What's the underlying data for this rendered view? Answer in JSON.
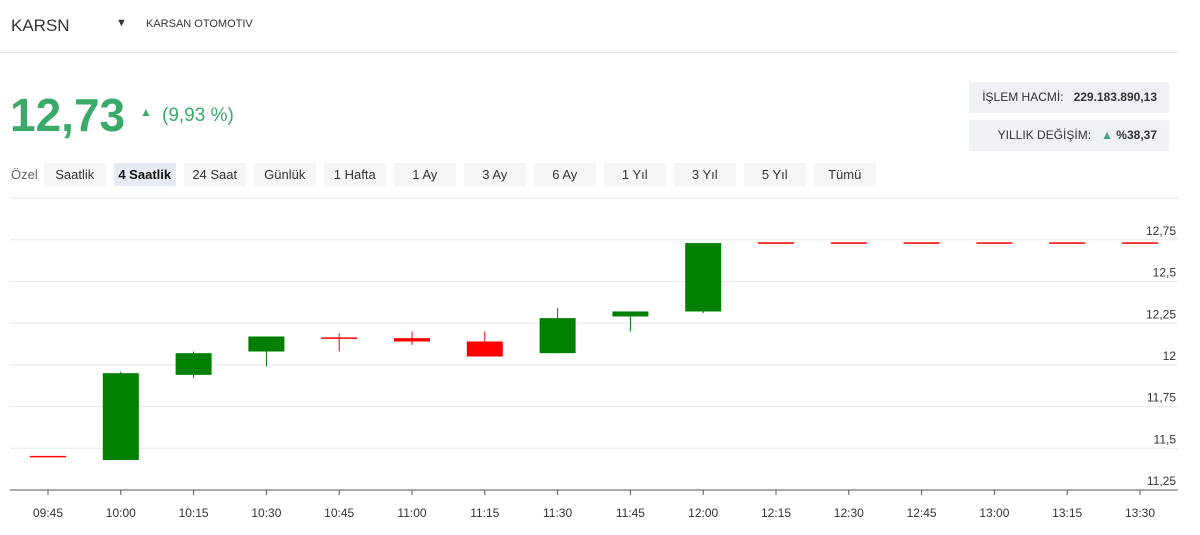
{
  "header": {
    "symbol": "KARSN",
    "name": "KARSAN OTOMOTIV",
    "price": "12,73",
    "change": "(9,93 %)",
    "volume_label": "İŞLEM HACMİ:",
    "volume": "229.183.890,13",
    "yearly_label": "YILLIK DEĞİŞİM:",
    "yearly": "%38,37"
  },
  "tabs": {
    "label": "Özel",
    "items": [
      "Saatlik",
      "4 Saatlik",
      "24 Saat",
      "Günlük",
      "1 Hafta",
      "1 Ay",
      "3 Ay",
      "6 Ay",
      "1 Yıl",
      "3 Yıl",
      "5 Yıl",
      "Tümü"
    ],
    "active": 1
  },
  "chart_data": {
    "type": "candlestick",
    "categories": [
      "09:45",
      "10:00",
      "10:15",
      "10:30",
      "10:45",
      "11:00",
      "11:15",
      "11:30",
      "11:45",
      "12:00",
      "12:15",
      "12:30",
      "12:45",
      "13:00",
      "13:15",
      "13:30"
    ],
    "open": [
      11.45,
      11.43,
      11.94,
      12.08,
      12.16,
      12.16,
      12.14,
      12.07,
      12.29,
      12.32,
      12.73,
      12.73,
      12.73,
      12.73,
      12.73,
      12.73
    ],
    "high": [
      11.45,
      11.96,
      12.08,
      12.17,
      12.19,
      12.2,
      12.2,
      12.34,
      12.32,
      12.73,
      12.73,
      12.73,
      12.73,
      12.73,
      12.73,
      12.73
    ],
    "low": [
      11.45,
      11.43,
      11.92,
      11.99,
      12.08,
      12.12,
      12.05,
      12.07,
      12.2,
      12.31,
      12.73,
      12.73,
      12.73,
      12.73,
      12.73,
      12.73
    ],
    "close": [
      11.45,
      11.95,
      12.07,
      12.17,
      12.16,
      12.14,
      12.05,
      12.28,
      12.32,
      12.73,
      12.73,
      12.73,
      12.73,
      12.73,
      12.73,
      12.73
    ],
    "up_color": "#008000",
    "down_color": "#ff0000",
    "ylim": [
      11.25,
      13.0
    ],
    "yticks": [
      {
        "value": 11.25,
        "label": "11,25"
      },
      {
        "value": 11.5,
        "label": "11,5"
      },
      {
        "value": 11.75,
        "label": "11,75"
      },
      12,
      {
        "value": 12.25,
        "label": "12,25"
      },
      {
        "value": 12.5,
        "label": "12,5"
      },
      {
        "value": 12.75,
        "label": "12,75"
      }
    ],
    "grid": true
  }
}
